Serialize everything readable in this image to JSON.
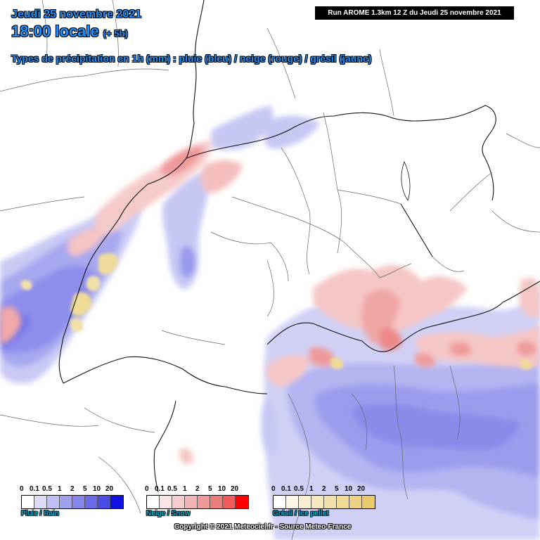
{
  "header": {
    "date": "Jeudi 25 novembre 2021",
    "time": "18:00 locale",
    "offset": "(+ 5h)",
    "subtitle": "Types de précipitation en 1h (mm) : pluie (bleu) / neige (rouge) / grésil (jaune)"
  },
  "run_label": "Run AROME 1.3km 12 Z du Jeudi 25 novembre 2021",
  "legend": {
    "ticks": [
      "0",
      "0.1",
      "0.5",
      "1",
      "2",
      "5",
      "10",
      "20"
    ],
    "rain": {
      "label": "Pluie / Rain",
      "colors": [
        "#ffffff",
        "#dcdcfa",
        "#c0c0f5",
        "#a0a0f0",
        "#8585eb",
        "#6a6ae6",
        "#4b4be6",
        "#1010e0"
      ]
    },
    "snow": {
      "label": "Neige / Snow",
      "colors": [
        "#ffffff",
        "#fbe4e4",
        "#f7cccc",
        "#f3b4b4",
        "#ef9999",
        "#eb7d7d",
        "#f25a5a",
        "#ff0000"
      ]
    },
    "sleet": {
      "label": "Grésil / Ice pellet",
      "colors": [
        "#ffffff",
        "#fbf6e6",
        "#f8efd2",
        "#f5e8be",
        "#f2e1aa",
        "#efda96",
        "#ecd282",
        "#e9ca6e"
      ]
    }
  },
  "copyright": "Copyright © 2021 Meteociel.fr - Source Meteo-France"
}
